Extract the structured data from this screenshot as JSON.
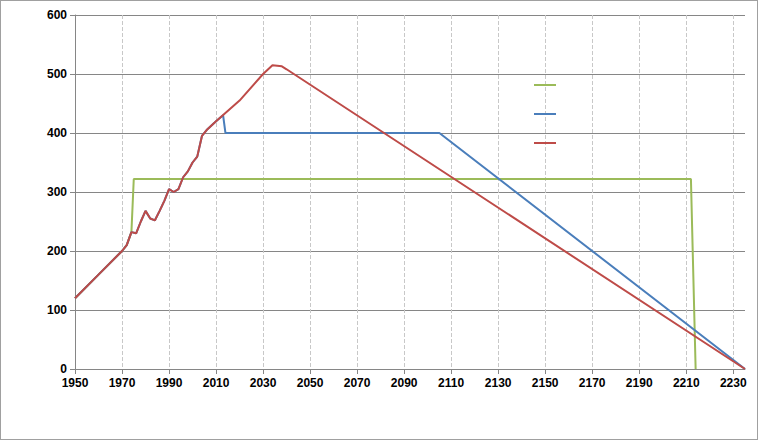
{
  "chart_data": {
    "type": "line",
    "xlim": [
      1950,
      2235
    ],
    "xticks": [
      1950,
      1970,
      1990,
      2010,
      2030,
      2050,
      2070,
      2090,
      2110,
      2130,
      2150,
      2170,
      2190,
      2210,
      2230
    ],
    "ylim": [
      0,
      600
    ],
    "yticks": [
      0,
      100,
      200,
      300,
      400,
      500,
      600
    ],
    "grid": true,
    "legend": "right",
    "series": [
      {
        "color": "#9bbb59",
        "x": [
          1950,
          1960,
          1970,
          1972,
          1974,
          1975,
          2212,
          2214
        ],
        "values": [
          120,
          160,
          200,
          210,
          232,
          322,
          322,
          0
        ]
      },
      {
        "color": "#4a7ebb",
        "x": [
          1950,
          1960,
          1970,
          1972,
          1974,
          1976,
          1978,
          1980,
          1982,
          1984,
          1986,
          1988,
          1990,
          1992,
          1994,
          1996,
          1998,
          2000,
          2002,
          2004,
          2006,
          2010,
          2013,
          2014,
          2105,
          2235
        ],
        "values": [
          120,
          160,
          200,
          210,
          232,
          230,
          250,
          268,
          255,
          252,
          268,
          285,
          305,
          300,
          305,
          325,
          335,
          350,
          360,
          395,
          405,
          420,
          430,
          400,
          400,
          0
        ]
      },
      {
        "color": "#be4b48",
        "x": [
          1950,
          1960,
          1970,
          1972,
          1974,
          1976,
          1978,
          1980,
          1982,
          1984,
          1986,
          1988,
          1990,
          1992,
          1994,
          1996,
          1998,
          2000,
          2002,
          2004,
          2006,
          2010,
          2020,
          2030,
          2034,
          2038,
          2040,
          2235
        ],
        "values": [
          120,
          160,
          200,
          210,
          232,
          230,
          250,
          268,
          255,
          252,
          268,
          285,
          305,
          300,
          305,
          325,
          335,
          350,
          360,
          395,
          405,
          420,
          455,
          500,
          515,
          513,
          508,
          0
        ]
      }
    ]
  }
}
